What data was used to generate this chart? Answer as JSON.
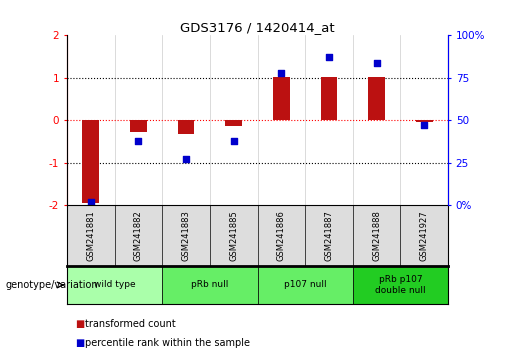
{
  "title": "GDS3176 / 1420414_at",
  "samples": [
    "GSM241881",
    "GSM241882",
    "GSM241883",
    "GSM241885",
    "GSM241886",
    "GSM241887",
    "GSM241888",
    "GSM241927"
  ],
  "bar_values": [
    -1.95,
    -0.28,
    -0.33,
    -0.13,
    1.02,
    1.02,
    1.02,
    -0.04
  ],
  "dot_values_pct": [
    2,
    38,
    27,
    38,
    78,
    87,
    84,
    47
  ],
  "ylim_left": [
    -2,
    2
  ],
  "ylim_right": [
    0,
    100
  ],
  "bar_color": "#bb1111",
  "dot_color": "#0000cc",
  "groups": [
    {
      "label": "wild type",
      "start": 0,
      "end": 2,
      "color": "#aaffaa"
    },
    {
      "label": "pRb null",
      "start": 2,
      "end": 4,
      "color": "#66ee66"
    },
    {
      "label": "p107 null",
      "start": 4,
      "end": 6,
      "color": "#66ee66"
    },
    {
      "label": "pRb p107\ndouble null",
      "start": 6,
      "end": 8,
      "color": "#22cc22"
    }
  ],
  "legend_bar_label": "transformed count",
  "legend_dot_label": "percentile rank within the sample",
  "genotype_label": "genotype/variation",
  "yticks_left": [
    -2,
    -1,
    0,
    1,
    2
  ],
  "yticks_right": [
    0,
    25,
    50,
    75,
    100
  ],
  "ytick_labels_right": [
    "0",
    "25",
    "50",
    "75",
    "100%"
  ]
}
